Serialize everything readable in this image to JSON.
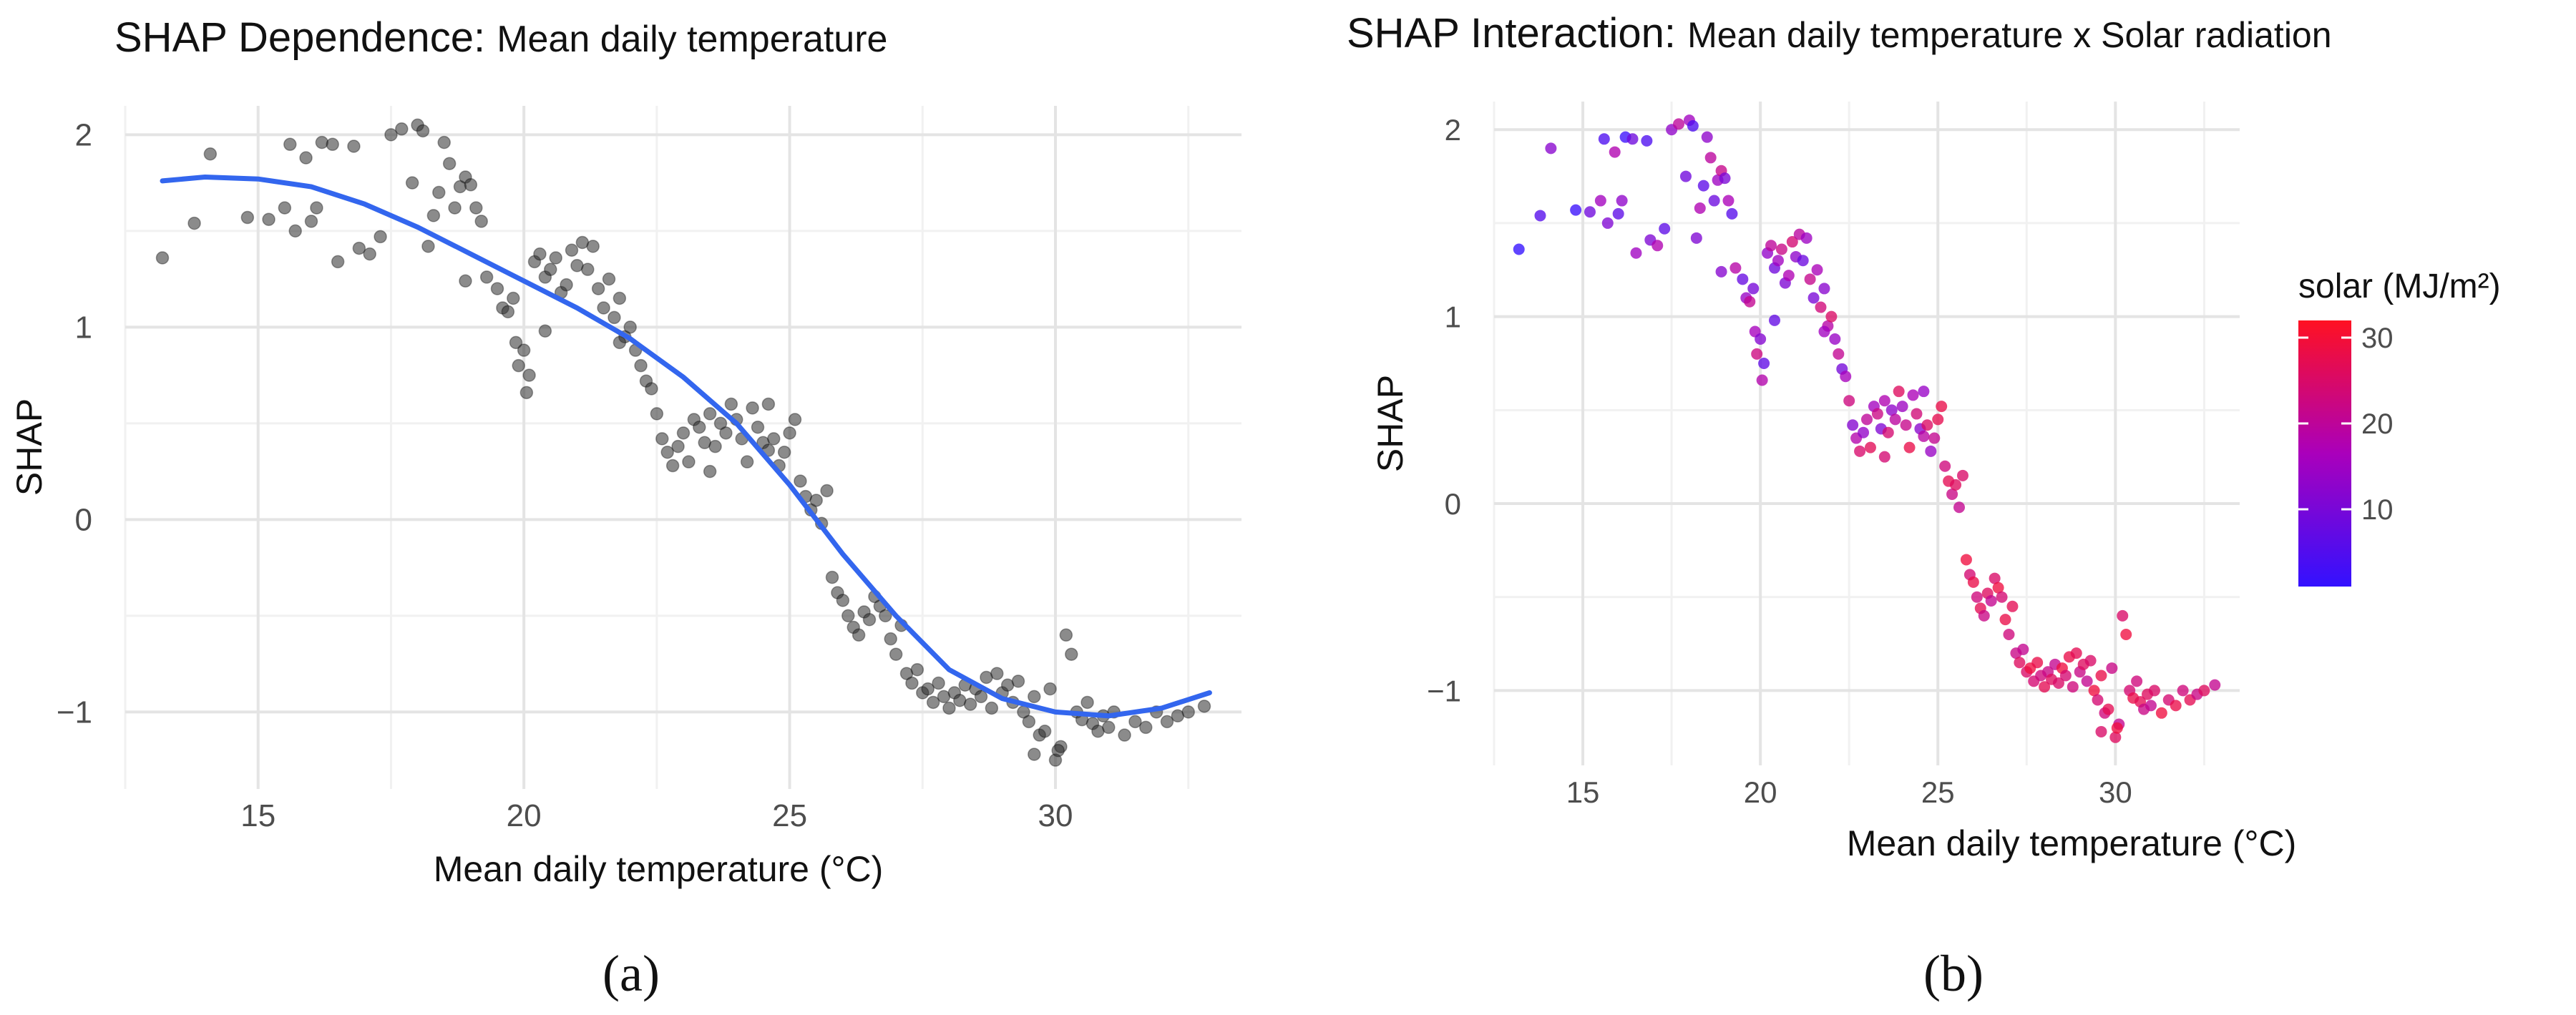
{
  "figure": {
    "panel_a_label": "(a)",
    "panel_b_label": "(b)"
  },
  "chart_data": [
    {
      "type": "scatter",
      "title_prefix": "SHAP Dependence: ",
      "title_main": "Mean daily temperature",
      "xlabel": "Mean daily temperature (°C)",
      "ylabel": "SHAP",
      "xlim": [
        12.5,
        33.5
      ],
      "ylim": [
        -1.4,
        2.15
      ],
      "x_ticks": [
        15,
        20,
        25,
        30
      ],
      "y_ticks": [
        -1,
        0,
        1,
        2
      ],
      "x_tick_labels": [
        "15",
        "20",
        "25",
        "30"
      ],
      "y_tick_labels": [
        "−1",
        "0",
        "1",
        "2"
      ],
      "point_color": "#2b2b2b",
      "point_opacity": 0.55,
      "smooth_color": "#3366ee",
      "grid": true,
      "points": [
        [
          13.2,
          1.36
        ],
        [
          13.8,
          1.54
        ],
        [
          14.1,
          1.9
        ],
        [
          14.8,
          1.57
        ],
        [
          15.2,
          1.56
        ],
        [
          15.5,
          1.62
        ],
        [
          15.6,
          1.95
        ],
        [
          15.7,
          1.5
        ],
        [
          15.9,
          1.88
        ],
        [
          16.0,
          1.55
        ],
        [
          16.1,
          1.62
        ],
        [
          16.2,
          1.96
        ],
        [
          16.4,
          1.95
        ],
        [
          16.5,
          1.34
        ],
        [
          16.8,
          1.94
        ],
        [
          16.9,
          1.41
        ],
        [
          17.1,
          1.38
        ],
        [
          17.3,
          1.47
        ],
        [
          17.5,
          2.0
        ],
        [
          17.7,
          2.03
        ],
        [
          17.9,
          1.75
        ],
        [
          18.0,
          2.05
        ],
        [
          18.1,
          2.02
        ],
        [
          18.2,
          1.42
        ],
        [
          18.3,
          1.58
        ],
        [
          18.4,
          1.7
        ],
        [
          18.5,
          1.96
        ],
        [
          18.6,
          1.85
        ],
        [
          18.7,
          1.62
        ],
        [
          18.8,
          1.73
        ],
        [
          18.9,
          1.78
        ],
        [
          19.0,
          1.74
        ],
        [
          19.1,
          1.62
        ],
        [
          19.2,
          1.55
        ],
        [
          18.9,
          1.24
        ],
        [
          19.3,
          1.26
        ],
        [
          19.5,
          1.2
        ],
        [
          19.6,
          1.1
        ],
        [
          19.7,
          1.08
        ],
        [
          19.8,
          1.15
        ],
        [
          19.85,
          0.92
        ],
        [
          19.9,
          0.8
        ],
        [
          20.0,
          0.88
        ],
        [
          20.05,
          0.66
        ],
        [
          20.1,
          0.75
        ],
        [
          20.2,
          1.34
        ],
        [
          20.3,
          1.38
        ],
        [
          20.4,
          1.26
        ],
        [
          20.5,
          1.3
        ],
        [
          20.6,
          1.36
        ],
        [
          20.7,
          1.18
        ],
        [
          20.8,
          1.22
        ],
        [
          20.9,
          1.4
        ],
        [
          21.0,
          1.32
        ],
        [
          21.1,
          1.44
        ],
        [
          21.2,
          1.3
        ],
        [
          21.3,
          1.42
        ],
        [
          21.4,
          1.2
        ],
        [
          21.5,
          1.1
        ],
        [
          21.6,
          1.25
        ],
        [
          21.7,
          1.05
        ],
        [
          21.8,
          1.15
        ],
        [
          21.9,
          0.95
        ],
        [
          22.0,
          1.0
        ],
        [
          22.1,
          0.88
        ],
        [
          22.2,
          0.8
        ],
        [
          22.3,
          0.72
        ],
        [
          22.4,
          0.68
        ],
        [
          22.5,
          0.55
        ],
        [
          22.6,
          0.42
        ],
        [
          22.7,
          0.35
        ],
        [
          22.8,
          0.28
        ],
        [
          22.9,
          0.38
        ],
        [
          23.0,
          0.45
        ],
        [
          23.1,
          0.3
        ],
        [
          23.2,
          0.52
        ],
        [
          23.3,
          0.48
        ],
        [
          23.4,
          0.4
        ],
        [
          23.5,
          0.55
        ],
        [
          23.6,
          0.38
        ],
        [
          23.7,
          0.5
        ],
        [
          23.8,
          0.45
        ],
        [
          23.9,
          0.6
        ],
        [
          24.0,
          0.52
        ],
        [
          24.1,
          0.42
        ],
        [
          24.2,
          0.3
        ],
        [
          24.3,
          0.58
        ],
        [
          24.4,
          0.48
        ],
        [
          24.5,
          0.4
        ],
        [
          24.6,
          0.36
        ],
        [
          24.7,
          0.42
        ],
        [
          24.8,
          0.28
        ],
        [
          24.9,
          0.35
        ],
        [
          25.0,
          0.45
        ],
        [
          25.1,
          0.52
        ],
        [
          25.2,
          0.2
        ],
        [
          25.3,
          0.12
        ],
        [
          25.4,
          0.05
        ],
        [
          25.5,
          0.1
        ],
        [
          25.6,
          -0.02
        ],
        [
          25.7,
          0.15
        ],
        [
          25.8,
          -0.3
        ],
        [
          25.9,
          -0.38
        ],
        [
          26.0,
          -0.42
        ],
        [
          26.1,
          -0.5
        ],
        [
          26.2,
          -0.56
        ],
        [
          26.3,
          -0.6
        ],
        [
          26.4,
          -0.48
        ],
        [
          26.5,
          -0.52
        ],
        [
          26.6,
          -0.4
        ],
        [
          26.7,
          -0.45
        ],
        [
          26.8,
          -0.5
        ],
        [
          26.9,
          -0.62
        ],
        [
          27.0,
          -0.7
        ],
        [
          27.1,
          -0.55
        ],
        [
          27.2,
          -0.8
        ],
        [
          27.3,
          -0.85
        ],
        [
          27.4,
          -0.78
        ],
        [
          27.5,
          -0.9
        ],
        [
          27.6,
          -0.88
        ],
        [
          27.7,
          -0.95
        ],
        [
          27.8,
          -0.85
        ],
        [
          27.9,
          -0.92
        ],
        [
          28.0,
          -0.98
        ],
        [
          28.1,
          -0.9
        ],
        [
          28.2,
          -0.94
        ],
        [
          28.3,
          -0.86
        ],
        [
          28.4,
          -0.96
        ],
        [
          28.5,
          -0.88
        ],
        [
          28.6,
          -0.92
        ],
        [
          28.7,
          -0.82
        ],
        [
          28.8,
          -0.98
        ],
        [
          28.9,
          -0.8
        ],
        [
          29.0,
          -0.9
        ],
        [
          29.1,
          -0.86
        ],
        [
          29.2,
          -0.95
        ],
        [
          29.3,
          -0.84
        ],
        [
          29.4,
          -1.0
        ],
        [
          29.5,
          -1.05
        ],
        [
          29.6,
          -0.92
        ],
        [
          29.7,
          -1.12
        ],
        [
          29.8,
          -1.1
        ],
        [
          29.9,
          -0.88
        ],
        [
          30.0,
          -1.25
        ],
        [
          30.1,
          -1.18
        ],
        [
          30.2,
          -0.6
        ],
        [
          30.3,
          -0.7
        ],
        [
          30.4,
          -1.0
        ],
        [
          30.5,
          -1.04
        ],
        [
          30.6,
          -0.95
        ],
        [
          30.7,
          -1.06
        ],
        [
          30.8,
          -1.1
        ],
        [
          30.9,
          -1.02
        ],
        [
          31.0,
          -1.08
        ],
        [
          31.1,
          -1.0
        ],
        [
          31.3,
          -1.12
        ],
        [
          31.5,
          -1.05
        ],
        [
          31.7,
          -1.08
        ],
        [
          31.9,
          -1.0
        ],
        [
          32.1,
          -1.05
        ],
        [
          32.3,
          -1.02
        ],
        [
          32.5,
          -1.0
        ],
        [
          32.8,
          -0.97
        ],
        [
          29.6,
          -1.22
        ],
        [
          30.05,
          -1.2
        ],
        [
          20.4,
          0.98
        ],
        [
          21.8,
          0.92
        ],
        [
          23.5,
          0.25
        ],
        [
          24.6,
          0.6
        ]
      ],
      "smooth_line": [
        [
          13.2,
          1.76
        ],
        [
          14.0,
          1.78
        ],
        [
          15.0,
          1.77
        ],
        [
          16.0,
          1.73
        ],
        [
          17.0,
          1.64
        ],
        [
          18.0,
          1.52
        ],
        [
          19.0,
          1.38
        ],
        [
          20.0,
          1.24
        ],
        [
          21.0,
          1.1
        ],
        [
          22.0,
          0.94
        ],
        [
          23.0,
          0.74
        ],
        [
          24.0,
          0.5
        ],
        [
          25.0,
          0.18
        ],
        [
          26.0,
          -0.18
        ],
        [
          27.0,
          -0.5
        ],
        [
          28.0,
          -0.78
        ],
        [
          29.0,
          -0.93
        ],
        [
          30.0,
          -1.0
        ],
        [
          31.0,
          -1.02
        ],
        [
          32.0,
          -0.98
        ],
        [
          32.9,
          -0.9
        ]
      ]
    },
    {
      "type": "scatter",
      "title_prefix": "SHAP Interaction: ",
      "title_main": "Mean daily temperature x Solar radiation",
      "xlabel": "Mean daily temperature (°C)",
      "ylabel": "SHAP",
      "xlim": [
        12.5,
        33.5
      ],
      "ylim": [
        -1.4,
        2.15
      ],
      "x_ticks": [
        15,
        20,
        25,
        30
      ],
      "y_ticks": [
        -1,
        0,
        1,
        2
      ],
      "x_tick_labels": [
        "15",
        "20",
        "25",
        "30"
      ],
      "y_tick_labels": [
        "−1",
        "0",
        "1",
        "2"
      ],
      "grid": true,
      "legend": {
        "title": "solar (MJ/m²)",
        "ticks": [
          10,
          20,
          30
        ],
        "tick_labels": [
          "10",
          "20",
          "30"
        ],
        "range": [
          1,
          32
        ],
        "color_low": "#3311ff",
        "color_mid": "#aa00bb",
        "color_high": "#ff1122",
        "position": "right"
      },
      "color_scale_note": "point color encodes solar radiation (MJ/m²)"
    }
  ]
}
